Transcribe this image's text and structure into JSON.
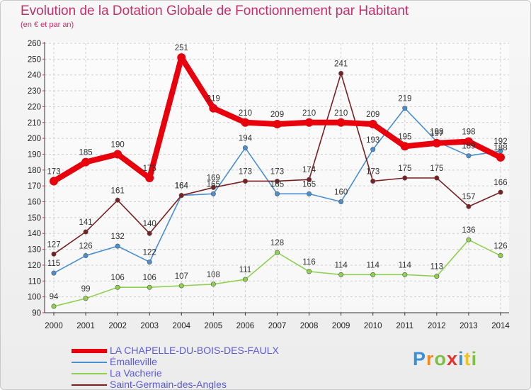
{
  "header": {
    "title": "Evolution de la Dotation Globale de Fonctionnement par Habitant",
    "subtitle": "(en € et par an)"
  },
  "brand": {
    "logo_text": "Proxiti"
  },
  "colors": {
    "title": "#c4306a",
    "legend_text": "#5b5bd6",
    "axis": "#333333",
    "grid": "#cfcfcf"
  },
  "chart_data": {
    "type": "line",
    "title": "Evolution de la Dotation Globale de Fonctionnement par Habitant",
    "subtitle": "(en € et par an)",
    "xlabel": "",
    "ylabel": "",
    "x": [
      "2000",
      "2001",
      "2002",
      "2003",
      "2004",
      "2005",
      "2006",
      "2007",
      "2008",
      "2009",
      "2010",
      "2011",
      "2012",
      "2013",
      "2014"
    ],
    "yticks": [
      90,
      100,
      110,
      120,
      130,
      140,
      150,
      160,
      170,
      180,
      190,
      200,
      210,
      220,
      230,
      240,
      250,
      260
    ],
    "ylim": [
      90,
      260
    ],
    "grid": true,
    "legend_position": "bottom-left",
    "series": [
      {
        "name": "LA CHAPELLE-DU-BOIS-DES-FAULX",
        "color": "#e8000d",
        "values": [
          173,
          185,
          190,
          175,
          251,
          219,
          210,
          209,
          210,
          210,
          209,
          195,
          197,
          198,
          188
        ],
        "labels": [
          "173",
          "185",
          "190",
          "175",
          "251",
          "219",
          "210",
          "209",
          "210",
          "210",
          "209",
          "195",
          "197",
          "198",
          "188"
        ]
      },
      {
        "name": "Émalleville",
        "color": "#4a8fd0",
        "values": [
          115,
          126,
          132,
          122,
          164,
          165,
          194,
          165,
          165,
          160,
          193,
          219,
          198,
          189,
          192
        ],
        "labels": [
          "115",
          "126",
          "132",
          "122",
          "164",
          "165",
          "194",
          "165",
          "165",
          "160",
          "193",
          "219",
          "198",
          "189",
          "192"
        ]
      },
      {
        "name": "La Vacherie",
        "color": "#8fd14f",
        "values": [
          94,
          99,
          106,
          106,
          107,
          108,
          111,
          128,
          116,
          114,
          114,
          114,
          113,
          136,
          126
        ],
        "labels": [
          "94",
          "99",
          "106",
          "106",
          "107",
          "108",
          "111",
          "128",
          "116",
          "114",
          "114",
          "114",
          "113",
          "136",
          "126"
        ]
      },
      {
        "name": "Saint-Germain-des-Angles",
        "color": "#7a1f22",
        "values": [
          127,
          141,
          161,
          140,
          164,
          169,
          173,
          173,
          174,
          241,
          173,
          175,
          175,
          157,
          166
        ],
        "labels": [
          "127",
          "141",
          "161",
          "140",
          "164",
          "169",
          "173",
          "173",
          "174",
          "241",
          "173",
          "175",
          "175",
          "157",
          "166"
        ]
      }
    ]
  }
}
